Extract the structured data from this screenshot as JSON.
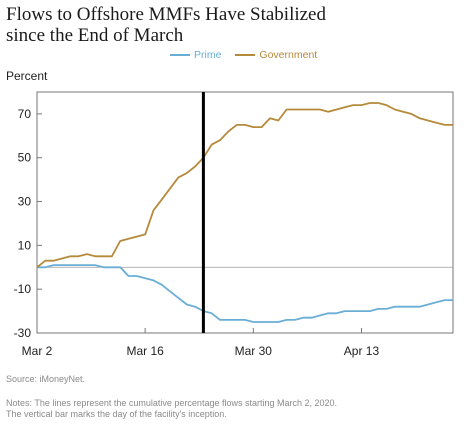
{
  "title_line1": "Flows to Offshore MMFs Have Stabilized",
  "title_line2": "since the End of March",
  "ylabel": "Percent",
  "source": "Source: iMoneyNet.",
  "notes_line1": "Notes: The lines represent the cumulative percentage flows starting March 2, 2020.",
  "notes_line2": "The vertical bar marks the day of the facility's inception.",
  "chart_data": {
    "type": "line",
    "ylabel": "Percent",
    "xlabel": "",
    "ylim": [
      -30,
      80
    ],
    "xlim": [
      0,
      50
    ],
    "yticks": [
      -30,
      -10,
      10,
      30,
      50,
      70
    ],
    "xticks": [
      {
        "x": 0,
        "label": "Mar 2"
      },
      {
        "x": 13,
        "label": "Mar 16"
      },
      {
        "x": 26,
        "label": "Mar 30"
      },
      {
        "x": 39,
        "label": "Apr 13"
      }
    ],
    "zero_line": 0,
    "vline": 20,
    "legend_position": "top",
    "grid": false,
    "series": [
      {
        "name": "Prime",
        "color": "#6aaed6",
        "x": [
          0,
          1,
          2,
          3,
          4,
          5,
          6,
          7,
          8,
          9,
          10,
          11,
          12,
          13,
          14,
          15,
          16,
          17,
          18,
          19,
          20,
          21,
          22,
          23,
          24,
          25,
          26,
          27,
          28,
          29,
          30,
          31,
          32,
          33,
          34,
          35,
          36,
          37,
          38,
          39,
          40,
          41,
          42,
          43,
          44,
          45,
          46,
          47,
          48,
          49,
          50
        ],
        "values": [
          0,
          0,
          1,
          1,
          1,
          1,
          1,
          1,
          0,
          0,
          0,
          -4,
          -4,
          -5,
          -6,
          -8,
          -11,
          -14,
          -17,
          -18,
          -20,
          -21,
          -24,
          -24,
          -24,
          -24,
          -25,
          -25,
          -25,
          -25,
          -24,
          -24,
          -23,
          -23,
          -22,
          -21,
          -21,
          -20,
          -20,
          -20,
          -20,
          -19,
          -19,
          -18,
          -18,
          -18,
          -18,
          -17,
          -16,
          -15,
          -15
        ]
      },
      {
        "name": "Government",
        "color": "#b58a3a",
        "x": [
          0,
          1,
          2,
          3,
          4,
          5,
          6,
          7,
          8,
          9,
          10,
          11,
          12,
          13,
          14,
          15,
          16,
          17,
          18,
          19,
          20,
          21,
          22,
          23,
          24,
          25,
          26,
          27,
          28,
          29,
          30,
          31,
          32,
          33,
          34,
          35,
          36,
          37,
          38,
          39,
          40,
          41,
          42,
          43,
          44,
          45,
          46,
          47,
          48,
          49,
          50
        ],
        "values": [
          0,
          3,
          3,
          4,
          5,
          5,
          6,
          5,
          5,
          5,
          12,
          13,
          14,
          15,
          26,
          31,
          36,
          41,
          43,
          46,
          50,
          56,
          58,
          62,
          65,
          65,
          64,
          64,
          68,
          67,
          72,
          72,
          72,
          72,
          72,
          71,
          72,
          73,
          74,
          74,
          75,
          75,
          74,
          72,
          71,
          70,
          68,
          67,
          66,
          65,
          65
        ]
      }
    ]
  }
}
